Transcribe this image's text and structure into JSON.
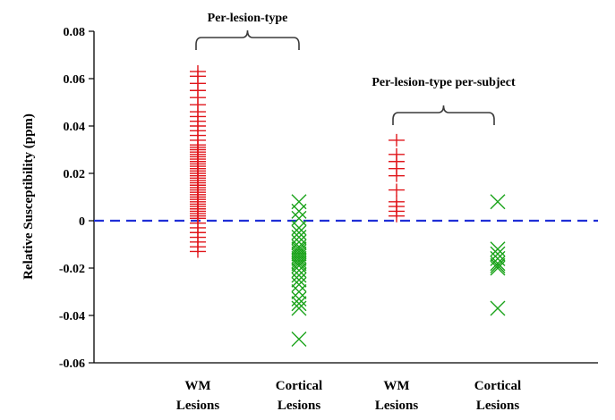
{
  "chart_data": {
    "type": "scatter",
    "title": "",
    "xlabel": "",
    "ylabel": "Relative Susceptibility (ppm)",
    "ylim": [
      -0.06,
      0.08
    ],
    "yticks": [
      "0.08",
      "0.06",
      "0.04",
      "0.02",
      "0",
      "-0.02",
      "-0.04",
      "-0.06"
    ],
    "ytick_values": [
      0.08,
      0.06,
      0.04,
      0.02,
      0,
      -0.02,
      -0.04,
      -0.06
    ],
    "categories": [
      {
        "line1": "WM",
        "line2": "Lesions"
      },
      {
        "line1": "Cortical",
        "line2": "Lesions"
      },
      {
        "line1": "WM",
        "line2": "Lesions"
      },
      {
        "line1": "Cortical",
        "line2": "Lesions"
      }
    ],
    "reference_line": {
      "y": 0,
      "color": "#1f2fd6",
      "style": "dashed"
    },
    "annotations": [
      {
        "text": "Per-lesion-type",
        "spans_categories": [
          0,
          1
        ]
      },
      {
        "text": "Per-lesion-type per-subject",
        "spans_categories": [
          2,
          3
        ]
      }
    ],
    "series": [
      {
        "name": "WM Lesions (per-lesion-type)",
        "category": 0,
        "marker": "plus",
        "color": "#e0161b",
        "values": [
          0.063,
          0.061,
          0.058,
          0.055,
          0.052,
          0.049,
          0.046,
          0.044,
          0.042,
          0.04,
          0.038,
          0.036,
          0.034,
          0.032,
          0.031,
          0.03,
          0.029,
          0.028,
          0.027,
          0.026,
          0.025,
          0.024,
          0.023,
          0.022,
          0.021,
          0.02,
          0.019,
          0.018,
          0.017,
          0.016,
          0.015,
          0.014,
          0.013,
          0.012,
          0.011,
          0.01,
          0.009,
          0.008,
          0.007,
          0.006,
          0.005,
          0.004,
          0.003,
          0.002,
          0.001,
          -0.001,
          -0.003,
          -0.005,
          -0.007,
          -0.009,
          -0.011,
          -0.013
        ]
      },
      {
        "name": "Cortical Lesions (per-lesion-type)",
        "category": 1,
        "marker": "x",
        "color": "#1aa31a",
        "values": [
          0.008,
          0.004,
          0.001,
          -0.003,
          -0.005,
          -0.007,
          -0.009,
          -0.011,
          -0.012,
          -0.013,
          -0.014,
          -0.015,
          -0.016,
          -0.017,
          -0.018,
          -0.019,
          -0.021,
          -0.023,
          -0.025,
          -0.027,
          -0.03,
          -0.033,
          -0.035,
          -0.037,
          -0.05
        ]
      },
      {
        "name": "WM Lesions (per-subject)",
        "category": 2,
        "marker": "plus",
        "color": "#e0161b",
        "values": [
          0.034,
          0.028,
          0.025,
          0.022,
          0.019,
          0.013,
          0.008,
          0.006,
          0.004,
          0.002
        ]
      },
      {
        "name": "Cortical Lesions (per-subject)",
        "category": 3,
        "marker": "x",
        "color": "#1aa31a",
        "values": [
          0.008,
          -0.012,
          -0.014,
          -0.016,
          -0.018,
          -0.019,
          -0.02,
          -0.037
        ]
      }
    ]
  }
}
